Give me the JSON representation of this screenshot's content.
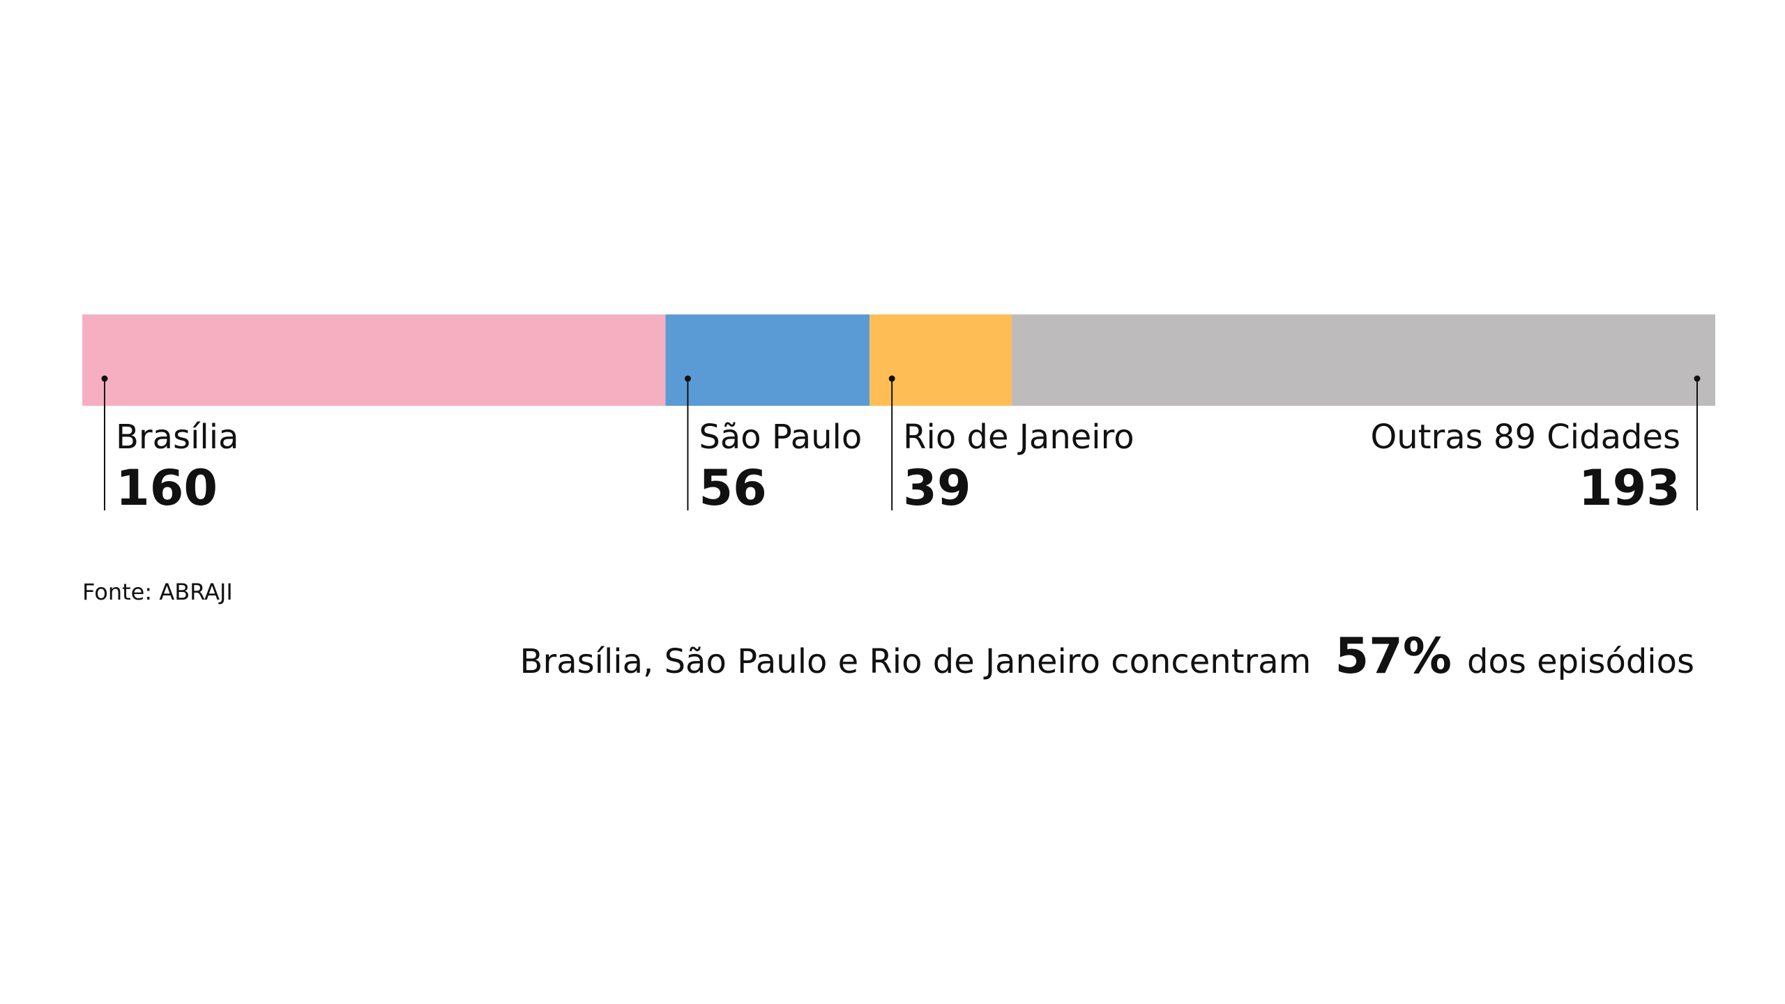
{
  "chart_data": {
    "type": "bar",
    "orientation": "horizontal-stacked",
    "categories": [
      "Brasília",
      "São Paulo",
      "Rio de Janeiro",
      "Outras 89 Cidades"
    ],
    "values": [
      160,
      56,
      39,
      193
    ],
    "colors": [
      "#f5afc1",
      "#5b9bd5",
      "#ffbe55",
      "#bdbbbb"
    ],
    "labels": [
      {
        "name": "Brasília",
        "value": "160",
        "align": "left"
      },
      {
        "name": "São Paulo",
        "value": "56",
        "align": "left"
      },
      {
        "name": "Rio de Janeiro",
        "value": "39",
        "align": "left"
      },
      {
        "name": "Outras 89 Cidades",
        "value": "193",
        "align": "right"
      }
    ],
    "title": "",
    "xlabel": "",
    "ylabel": ""
  },
  "source": "Fonte: ABRAJI",
  "summary": {
    "pre": "Brasília, São Paulo e Rio de Janeiro concentram",
    "highlight": "57%",
    "post": "dos episódios"
  }
}
